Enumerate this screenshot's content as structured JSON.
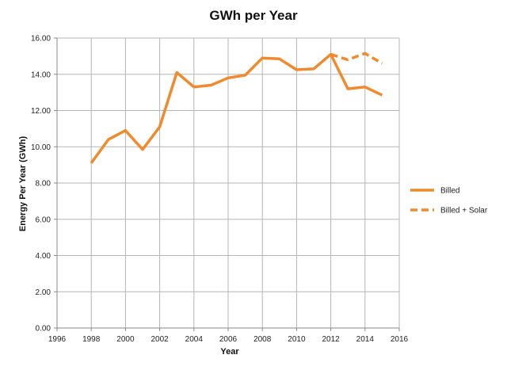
{
  "chart_data": {
    "type": "line",
    "title": "GWh per Year",
    "xlabel": "Year",
    "ylabel": "Energy Per Year (GWh)",
    "xlim": [
      1996,
      2016
    ],
    "ylim": [
      0,
      16
    ],
    "x_ticks": [
      "1996",
      "1998",
      "2000",
      "2002",
      "2004",
      "2006",
      "2008",
      "2010",
      "2012",
      "2014",
      "2016"
    ],
    "y_ticks": [
      "0.00",
      "2.00",
      "4.00",
      "6.00",
      "8.00",
      "10.00",
      "12.00",
      "14.00",
      "16.00"
    ],
    "grid": true,
    "legend_position": "right",
    "series": [
      {
        "name": "Billed",
        "style": "solid",
        "color": "#f08a2c",
        "x": [
          1998,
          1999,
          2000,
          2001,
          2002,
          2003,
          2004,
          2005,
          2006,
          2007,
          2008,
          2009,
          2010,
          2011,
          2012,
          2013,
          2014,
          2015
        ],
        "y": [
          9.1,
          10.4,
          10.9,
          9.85,
          11.1,
          14.1,
          13.3,
          13.4,
          13.8,
          13.95,
          14.9,
          14.85,
          14.25,
          14.3,
          15.1,
          13.2,
          13.3,
          12.85
        ]
      },
      {
        "name": "Billed + Solar",
        "style": "dashed",
        "color": "#f08a2c",
        "x": [
          2012,
          2013,
          2014,
          2015
        ],
        "y": [
          15.1,
          14.8,
          15.15,
          14.6
        ]
      }
    ]
  }
}
